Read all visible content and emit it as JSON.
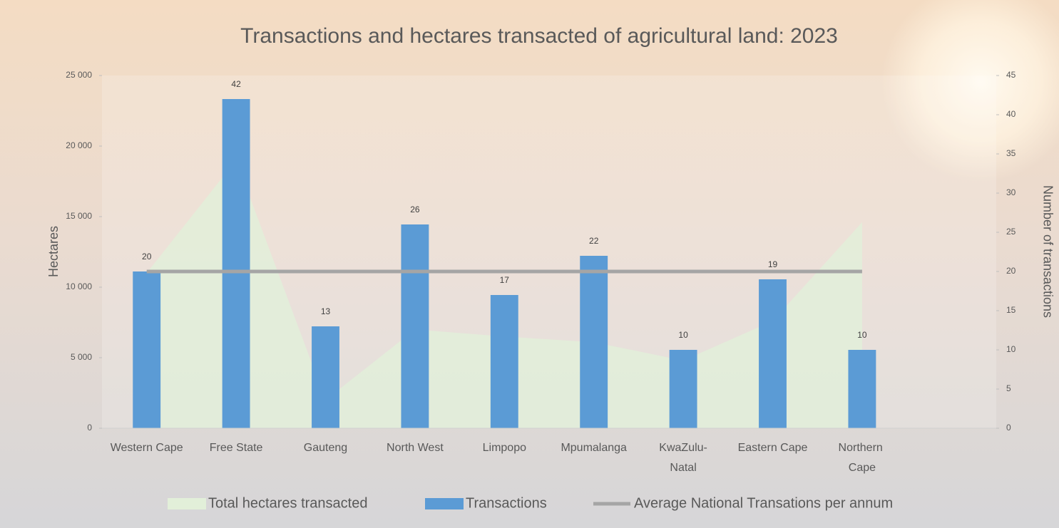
{
  "chart_data": {
    "type": "combo",
    "title": "Transactions and hectares transacted of agricultural land: 2023",
    "categories": [
      "Western Cape",
      "Free State",
      "Gauteng",
      "North West",
      "Limpopo",
      "Mpumalanga",
      "KwaZulu-Natal",
      "Eastern Cape",
      "Northern Cape",
      null
    ],
    "ylabel": "Hectares",
    "y2label": "Number of transactions",
    "ylim": [
      0,
      25000
    ],
    "yticks": [
      0,
      {
        "value": 5000,
        "label": "5 000"
      },
      {
        "value": 10000,
        "label": "10 000"
      },
      {
        "value": 15000,
        "label": "15 000"
      },
      {
        "value": 20000,
        "label": "20 000"
      },
      {
        "value": 25000,
        "label": "25 000"
      }
    ],
    "y2lim": [
      0,
      45
    ],
    "y2ticks": [
      0,
      5,
      10,
      15,
      20,
      25,
      30,
      35,
      40,
      45
    ],
    "series": [
      {
        "name": "Total hectares transacted",
        "type": "area",
        "color": "#e2efd9",
        "values": [
          11000,
          19000,
          2000,
          7000,
          6500,
          6100,
          4800,
          7600,
          14600,
          null
        ]
      },
      {
        "name": "Transactions",
        "type": "bar",
        "axis": "y2",
        "color": "#5b9bd5",
        "values": [
          20,
          42,
          13,
          26,
          17,
          22,
          10,
          19,
          10,
          null
        ]
      },
      {
        "name": "Average National Transations per annum",
        "type": "line",
        "axis": "y2",
        "color": "#a5a5a5",
        "values": [
          20,
          20,
          20,
          20,
          20,
          20,
          20,
          20,
          20,
          null
        ]
      }
    ]
  }
}
